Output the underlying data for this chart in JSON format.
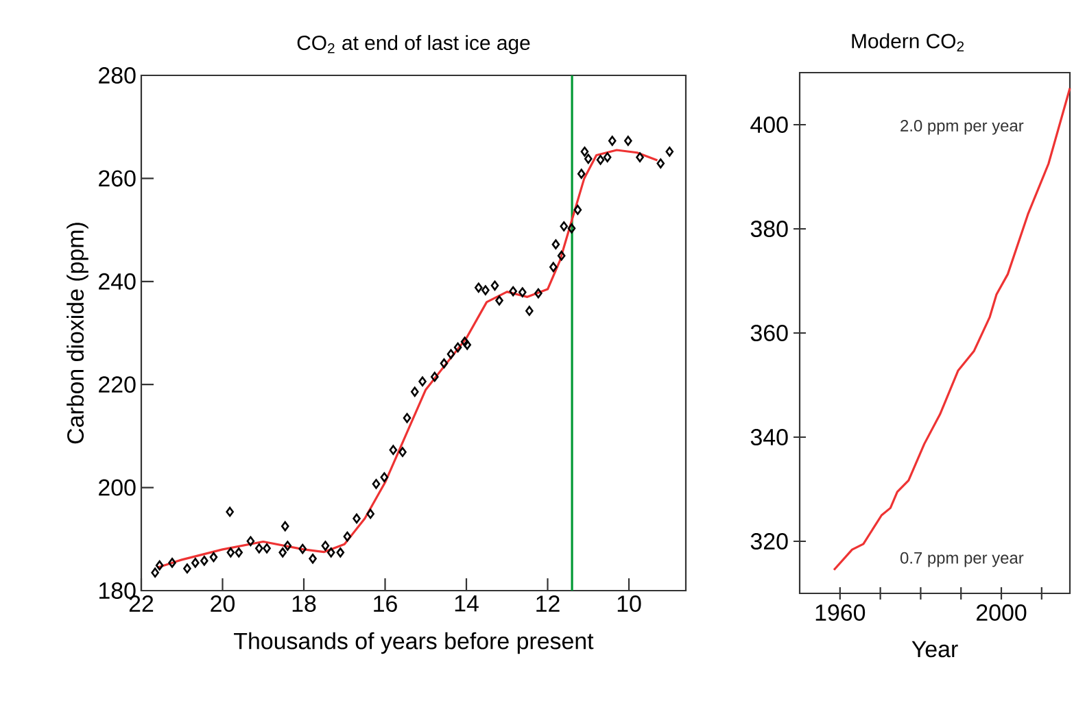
{
  "chart_data": [
    {
      "type": "scatter",
      "title": "CO$_{2}$ at end of last ice age",
      "xlabel": "Thousands of years before present",
      "ylabel": "Carbon dioxide (ppm)",
      "xlim": [
        22,
        8.6
      ],
      "ylim": [
        180,
        280
      ],
      "xticks": [
        22,
        20,
        18,
        16,
        14,
        12,
        10
      ],
      "yticks": [
        180,
        200,
        220,
        240,
        260,
        280
      ],
      "ref_lines": [
        {
          "axis": "x",
          "value": 11.4,
          "color": "#009933"
        }
      ],
      "series": [
        {
          "type": "scatter",
          "color": "#000000",
          "marker": "diamond",
          "x": [
            21.66,
            21.55,
            21.24,
            20.87,
            20.67,
            20.45,
            20.22,
            19.82,
            19.8,
            19.6,
            19.31,
            19.1,
            18.91,
            18.52,
            18.46,
            18.4,
            18.03,
            17.78,
            17.47,
            17.33,
            17.1,
            16.93,
            16.7,
            16.36,
            16.22,
            16.02,
            15.8,
            15.57,
            15.46,
            15.27,
            15.08,
            14.78,
            14.55,
            14.38,
            14.21,
            14.04,
            13.98,
            13.7,
            13.53,
            13.3,
            13.19,
            12.85,
            12.62,
            12.45,
            12.23,
            11.86,
            11.8,
            11.66,
            11.6,
            11.41,
            11.26,
            11.17,
            11.09,
            11.0,
            10.7,
            10.53,
            10.41,
            10.02,
            9.73,
            9.22,
            9.0
          ],
          "values": [
            183.5,
            184.9,
            185.4,
            184.3,
            185.4,
            185.8,
            186.5,
            195.3,
            187.4,
            187.4,
            189.6,
            188.2,
            188.2,
            187.4,
            192.5,
            188.7,
            188.1,
            186.2,
            188.7,
            187.4,
            187.4,
            190.5,
            194,
            194.9,
            200.7,
            202,
            207.3,
            206.9,
            213.5,
            218.6,
            220.6,
            221.5,
            224.1,
            225.9,
            227.2,
            228.3,
            227.7,
            238.8,
            238.3,
            239.2,
            236.3,
            238.1,
            237.9,
            234.3,
            237.7,
            242.8,
            247.2,
            245,
            250.7,
            250.3,
            253.9,
            260.9,
            265.2,
            263.8,
            263.6,
            264.1,
            267.3,
            267.3,
            264.1,
            262.9,
            265.2
          ]
        },
        {
          "type": "line",
          "color": "#ee3333",
          "x": [
            21.6,
            21,
            20,
            19,
            18,
            17.5,
            17,
            16.5,
            16,
            15.5,
            15,
            14.5,
            14,
            13.5,
            13,
            12.5,
            12,
            11.7,
            11.4,
            11.1,
            10.8,
            10.3,
            9.8,
            9.3
          ],
          "values": [
            184.5,
            186,
            188,
            189.5,
            188,
            187.5,
            189,
            194,
            201,
            210,
            219,
            224,
            229,
            236,
            238,
            237,
            238.5,
            244,
            252,
            260,
            264.5,
            265.5,
            265,
            263.5
          ]
        }
      ]
    },
    {
      "type": "line",
      "title": "Modern CO$_{2}$",
      "xlabel": "Year",
      "xlim": [
        1950,
        2017
      ],
      "ylim": [
        310,
        410
      ],
      "xticks": [
        1960,
        {
          "value": 1970,
          "label": null
        },
        {
          "value": 1980,
          "label": null
        },
        {
          "value": 1990,
          "label": null
        },
        2000,
        {
          "value": 2010,
          "label": null
        }
      ],
      "yticks": [
        320,
        340,
        360,
        380,
        400
      ],
      "annotations": [
        "2.0 ppm per year",
        "0.7 ppm per year"
      ],
      "series": [
        {
          "color": "#ee3333",
          "x": [
            1958.5,
            1963,
            1965.8,
            1970.3,
            1972.5,
            1974.2,
            1977,
            1980.9,
            1984.8,
            1989.3,
            1993.2,
            1997.1,
            1998.8,
            2001.6,
            2006.6,
            2011.7,
            2017
          ],
          "values": [
            314.5,
            318.4,
            319.5,
            325,
            326.4,
            329.5,
            331.7,
            338.7,
            344.4,
            352.8,
            356.5,
            363,
            367.4,
            371.3,
            382.8,
            392.5,
            407
          ]
        }
      ]
    }
  ]
}
